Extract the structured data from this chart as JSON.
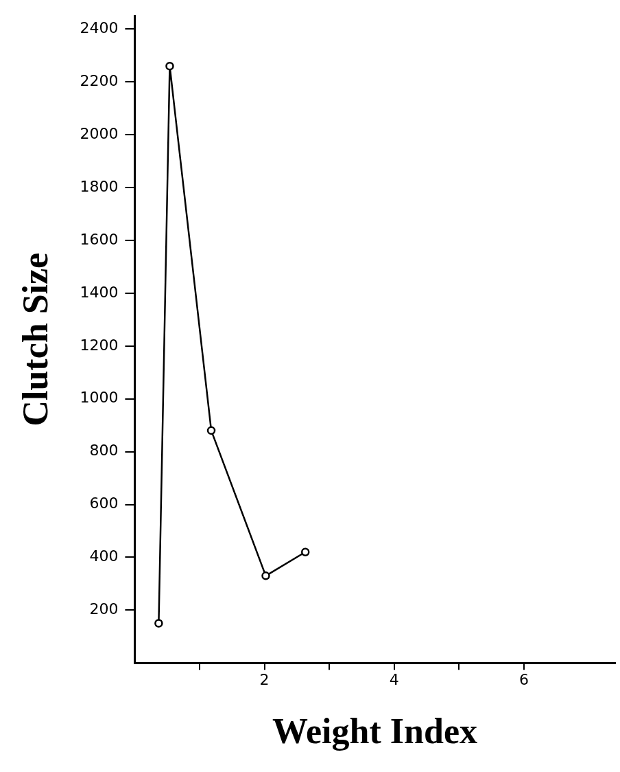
{
  "chart_data": {
    "type": "line",
    "xlabel": "Weight Index",
    "ylabel": "Clutch Size",
    "x": [
      0.37,
      0.54,
      1.18,
      2.02,
      2.63
    ],
    "series": [
      {
        "color": "#000000",
        "values": [
          150,
          2260,
          880,
          330,
          420
        ]
      }
    ],
    "xlim": [
      0,
      7.4
    ],
    "ylim": [
      0,
      2450
    ],
    "xticks": [
      {
        "value": 1,
        "label": null
      },
      2,
      {
        "value": 3,
        "label": null
      },
      4,
      {
        "value": 5,
        "label": null
      },
      6
    ],
    "yticks": [
      200,
      400,
      600,
      800,
      1000,
      1200,
      1400,
      1600,
      1800,
      2000,
      2200,
      2400
    ],
    "grid": false,
    "legend": false,
    "marker": "circle",
    "line_style": "solid"
  }
}
